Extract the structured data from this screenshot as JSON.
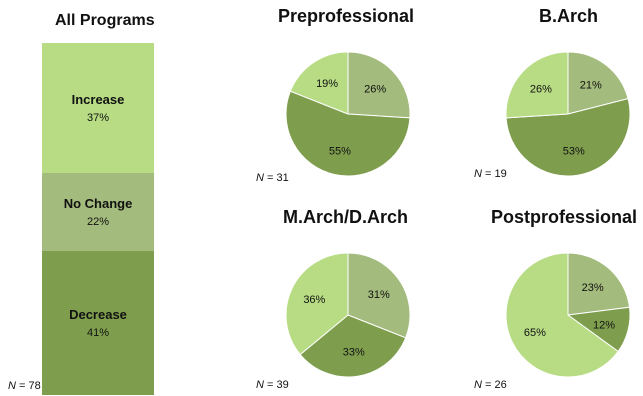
{
  "colors": {
    "increase": "#b7dc84",
    "no_change": "#a3bb7c",
    "decrease": "#7e9e4e"
  },
  "bar": {
    "title": "All Programs",
    "n": "78"
  },
  "n_prefix": "N",
  "n_sep": " = ",
  "chart_data": [
    {
      "type": "bar",
      "title": "All Programs",
      "n_label": "N = 78",
      "categories": [
        "Increase",
        "No Change",
        "Decrease"
      ],
      "values": [
        37,
        22,
        41
      ],
      "value_labels": [
        "37%",
        "22%",
        "41%"
      ]
    },
    {
      "type": "pie",
      "title": "Preprofessional",
      "n": "31",
      "slices": [
        {
          "category": "No Change",
          "value": 26,
          "label": "26%"
        },
        {
          "category": "Decrease",
          "value": 55,
          "label": "55%"
        },
        {
          "category": "Increase",
          "value": 19,
          "label": "19%"
        }
      ]
    },
    {
      "type": "pie",
      "title": "B.Arch",
      "n": "19",
      "slices": [
        {
          "category": "No Change",
          "value": 21,
          "label": "21%"
        },
        {
          "category": "Decrease",
          "value": 53,
          "label": "53%"
        },
        {
          "category": "Increase",
          "value": 26,
          "label": "26%"
        }
      ]
    },
    {
      "type": "pie",
      "title": "M.Arch/D.Arch",
      "n": "39",
      "slices": [
        {
          "category": "No Change",
          "value": 31,
          "label": "31%"
        },
        {
          "category": "Decrease",
          "value": 33,
          "label": "33%"
        },
        {
          "category": "Increase",
          "value": 36,
          "label": "36%"
        }
      ]
    },
    {
      "type": "pie",
      "title": "Postprofessional",
      "n": "26",
      "slices": [
        {
          "category": "No Change",
          "value": 23,
          "label": "23%"
        },
        {
          "category": "Decrease",
          "value": 12,
          "label": "12%"
        },
        {
          "category": "Increase",
          "value": 65,
          "label": "65%"
        }
      ]
    }
  ]
}
